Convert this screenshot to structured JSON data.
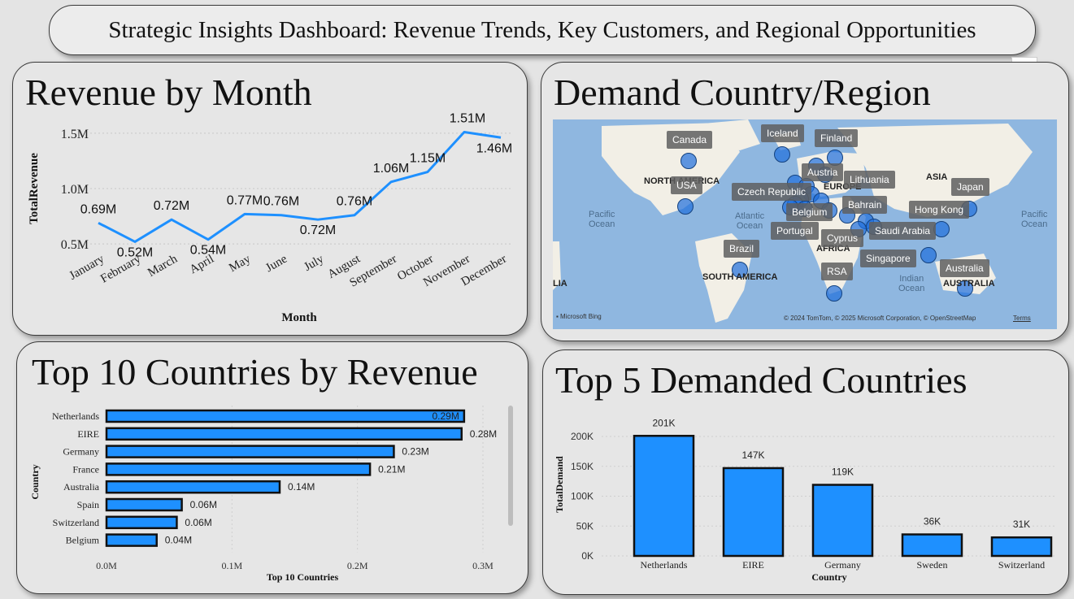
{
  "dashboard": {
    "title": "Strategic Insights Dashboard: Revenue Trends, Key Customers, and Regional Opportunities"
  },
  "toolbar": {
    "more_label": "···"
  },
  "colors": {
    "accent": "#1e90ff",
    "panel": "#e6e6e6",
    "background": "#e4e4e4"
  },
  "panels": {
    "revenue_month": {
      "title": "Revenue by Month"
    },
    "demand_map": {
      "title": "Demand Country/Region"
    },
    "top10": {
      "title": "Top 10 Countries by Revenue"
    },
    "top5": {
      "title": "Top 5 Demanded Countries"
    }
  },
  "map": {
    "labels": [
      "Canada",
      "Iceland",
      "Finland",
      "USA",
      "Austria",
      "Lithuania",
      "Czech Republic",
      "Bahrain",
      "Japan",
      "Belgium",
      "Hong Kong",
      "Portugal",
      "Saudi Arabia",
      "Cyprus",
      "Brazil",
      "Singapore",
      "RSA",
      "Australia"
    ],
    "regions": [
      "NORTH AMERICA",
      "ASIA",
      "EUROPE",
      "AFRICA",
      "SOUTH AMERICA",
      "AUSTRALIA",
      "LIA"
    ],
    "oceans": [
      "Pacific Ocean",
      "Atlantic Ocean",
      "Indian Ocean",
      "Pacific Ocean"
    ],
    "attribution": "Microsoft Bing",
    "credits": "© 2024 TomTom, © 2025 Microsoft Corporation, © OpenStreetMap",
    "terms": "Terms"
  },
  "chart_data": [
    {
      "type": "line",
      "title": "Revenue by Month",
      "xlabel": "Month",
      "ylabel": "TotalRevenue",
      "categories": [
        "January",
        "February",
        "March",
        "April",
        "May",
        "June",
        "July",
        "August",
        "September",
        "October",
        "November",
        "December"
      ],
      "values": [
        0.69,
        0.52,
        0.72,
        0.54,
        0.77,
        0.76,
        0.72,
        0.76,
        1.06,
        1.15,
        1.51,
        1.46
      ],
      "data_labels": [
        "0.69M",
        "0.52M",
        "0.72M",
        "0.54M",
        "0.77M",
        "0.76M",
        "0.72M",
        "0.76M",
        "1.06M",
        "1.15M",
        "1.51M",
        "1.46M"
      ],
      "y_ticks": [
        "0.5M",
        "1.0M",
        "1.5M"
      ],
      "y_tick_values": [
        0.5,
        1.0,
        1.5
      ],
      "ylim": [
        0.45,
        1.55
      ],
      "grid": true
    },
    {
      "type": "bar",
      "orientation": "horizontal",
      "title": "Top 10 Countries by Revenue",
      "xlabel": "Top 10 Countries",
      "ylabel": "Country",
      "categories": [
        "Netherlands",
        "EIRE",
        "Germany",
        "France",
        "Australia",
        "Spain",
        "Switzerland",
        "Belgium"
      ],
      "values": [
        0.285,
        0.283,
        0.229,
        0.21,
        0.138,
        0.06,
        0.056,
        0.04
      ],
      "data_labels": [
        "0.29M",
        "0.28M",
        "0.23M",
        "0.21M",
        "0.14M",
        "0.06M",
        "0.06M",
        "0.04M"
      ],
      "x_ticks": [
        "0.0M",
        "0.1M",
        "0.2M",
        "0.3M"
      ],
      "x_tick_values": [
        0,
        0.1,
        0.2,
        0.3
      ],
      "xlim": [
        0,
        0.3
      ],
      "grid": true
    },
    {
      "type": "bar",
      "title": "Top 5 Demanded Countries",
      "xlabel": "Country",
      "ylabel": "TotalDemand",
      "categories": [
        "Netherlands",
        "EIRE",
        "Germany",
        "Sweden",
        "Switzerland"
      ],
      "values": [
        201,
        147,
        119,
        36,
        31
      ],
      "data_labels": [
        "201K",
        "147K",
        "119K",
        "36K",
        "31K"
      ],
      "y_ticks": [
        "0K",
        "50K",
        "100K",
        "150K",
        "200K"
      ],
      "y_tick_values": [
        0,
        50,
        100,
        150,
        200
      ],
      "ylim": [
        0,
        200
      ],
      "grid": true
    }
  ]
}
